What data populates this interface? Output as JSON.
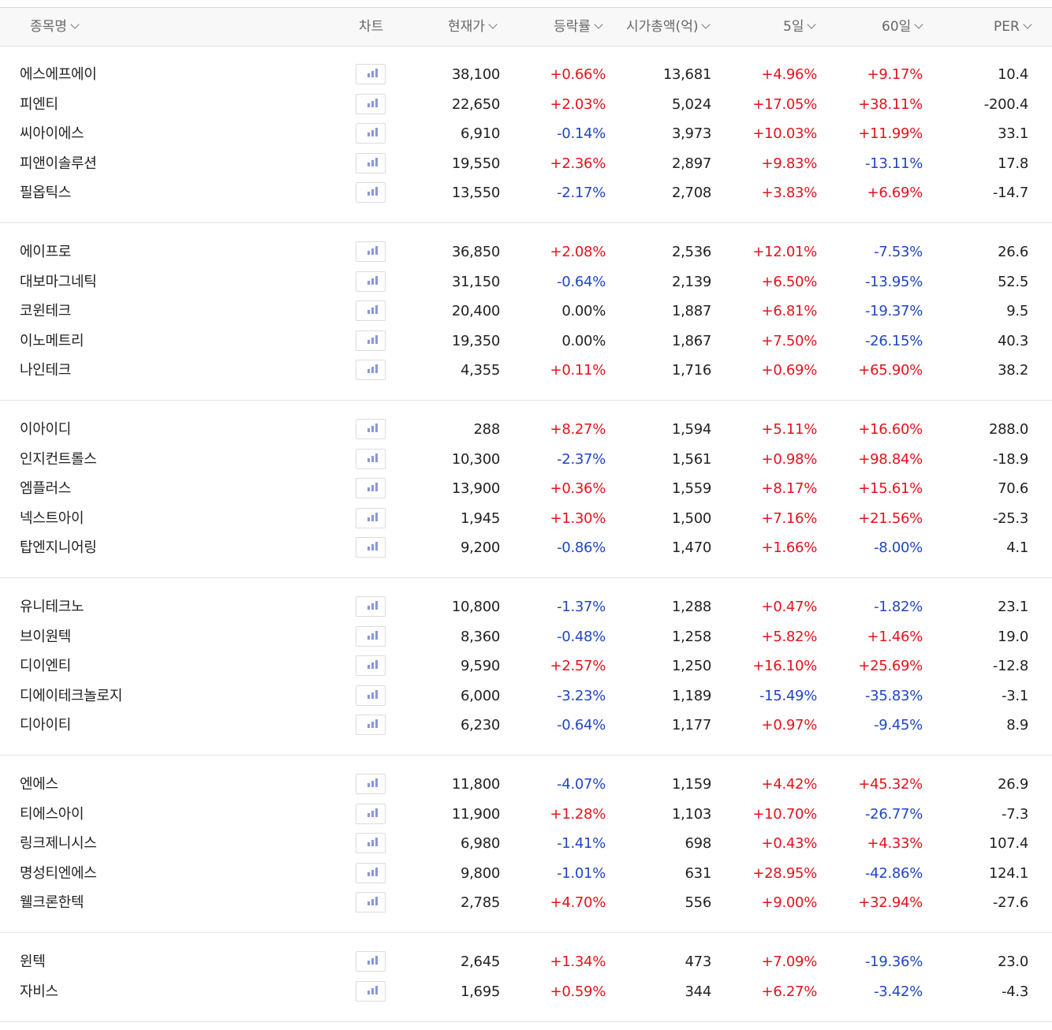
{
  "header": {
    "name": "종목명",
    "chart": "차트",
    "price": "현재가",
    "change": "등락률",
    "mcap": "시가총액(억)",
    "d5": "5일",
    "d60": "60일",
    "per": "PER"
  },
  "groups": [
    [
      {
        "name": "에스에프에이",
        "price": "38,100",
        "change": "+0.66%",
        "mcap": "13,681",
        "d5": "+4.96%",
        "d60": "+9.17%",
        "per": "10.4"
      },
      {
        "name": "피엔티",
        "price": "22,650",
        "change": "+2.03%",
        "mcap": "5,024",
        "d5": "+17.05%",
        "d60": "+38.11%",
        "per": "-200.4"
      },
      {
        "name": "씨아이에스",
        "price": "6,910",
        "change": "-0.14%",
        "mcap": "3,973",
        "d5": "+10.03%",
        "d60": "+11.99%",
        "per": "33.1"
      },
      {
        "name": "피앤이솔루션",
        "price": "19,550",
        "change": "+2.36%",
        "mcap": "2,897",
        "d5": "+9.83%",
        "d60": "-13.11%",
        "per": "17.8"
      },
      {
        "name": "필옵틱스",
        "price": "13,550",
        "change": "-2.17%",
        "mcap": "2,708",
        "d5": "+3.83%",
        "d60": "+6.69%",
        "per": "-14.7"
      }
    ],
    [
      {
        "name": "에이프로",
        "price": "36,850",
        "change": "+2.08%",
        "mcap": "2,536",
        "d5": "+12.01%",
        "d60": "-7.53%",
        "per": "26.6"
      },
      {
        "name": "대보마그네틱",
        "price": "31,150",
        "change": "-0.64%",
        "mcap": "2,139",
        "d5": "+6.50%",
        "d60": "-13.95%",
        "per": "52.5"
      },
      {
        "name": "코윈테크",
        "price": "20,400",
        "change": "0.00%",
        "mcap": "1,887",
        "d5": "+6.81%",
        "d60": "-19.37%",
        "per": "9.5"
      },
      {
        "name": "이노메트리",
        "price": "19,350",
        "change": "0.00%",
        "mcap": "1,867",
        "d5": "+7.50%",
        "d60": "-26.15%",
        "per": "40.3"
      },
      {
        "name": "나인테크",
        "price": "4,355",
        "change": "+0.11%",
        "mcap": "1,716",
        "d5": "+0.69%",
        "d60": "+65.90%",
        "per": "38.2"
      }
    ],
    [
      {
        "name": "이아이디",
        "price": "288",
        "change": "+8.27%",
        "mcap": "1,594",
        "d5": "+5.11%",
        "d60": "+16.60%",
        "per": "288.0"
      },
      {
        "name": "인지컨트롤스",
        "price": "10,300",
        "change": "-2.37%",
        "mcap": "1,561",
        "d5": "+0.98%",
        "d60": "+98.84%",
        "per": "-18.9"
      },
      {
        "name": "엠플러스",
        "price": "13,900",
        "change": "+0.36%",
        "mcap": "1,559",
        "d5": "+8.17%",
        "d60": "+15.61%",
        "per": "70.6"
      },
      {
        "name": "넥스트아이",
        "price": "1,945",
        "change": "+1.30%",
        "mcap": "1,500",
        "d5": "+7.16%",
        "d60": "+21.56%",
        "per": "-25.3"
      },
      {
        "name": "탑엔지니어링",
        "price": "9,200",
        "change": "-0.86%",
        "mcap": "1,470",
        "d5": "+1.66%",
        "d60": "-8.00%",
        "per": "4.1"
      }
    ],
    [
      {
        "name": "유니테크노",
        "price": "10,800",
        "change": "-1.37%",
        "mcap": "1,288",
        "d5": "+0.47%",
        "d60": "-1.82%",
        "per": "23.1"
      },
      {
        "name": "브이원텍",
        "price": "8,360",
        "change": "-0.48%",
        "mcap": "1,258",
        "d5": "+5.82%",
        "d60": "+1.46%",
        "per": "19.0"
      },
      {
        "name": "디이엔티",
        "price": "9,590",
        "change": "+2.57%",
        "mcap": "1,250",
        "d5": "+16.10%",
        "d60": "+25.69%",
        "per": "-12.8"
      },
      {
        "name": "디에이테크놀로지",
        "price": "6,000",
        "change": "-3.23%",
        "mcap": "1,189",
        "d5": "-15.49%",
        "d60": "-35.83%",
        "per": "-3.1"
      },
      {
        "name": "디아이티",
        "price": "6,230",
        "change": "-0.64%",
        "mcap": "1,177",
        "d5": "+0.97%",
        "d60": "-9.45%",
        "per": "8.9"
      }
    ],
    [
      {
        "name": "엔에스",
        "price": "11,800",
        "change": "-4.07%",
        "mcap": "1,159",
        "d5": "+4.42%",
        "d60": "+45.32%",
        "per": "26.9"
      },
      {
        "name": "티에스아이",
        "price": "11,900",
        "change": "+1.28%",
        "mcap": "1,103",
        "d5": "+10.70%",
        "d60": "-26.77%",
        "per": "-7.3"
      },
      {
        "name": "링크제니시스",
        "price": "6,980",
        "change": "-1.41%",
        "mcap": "698",
        "d5": "+0.43%",
        "d60": "+4.33%",
        "per": "107.4"
      },
      {
        "name": "명성티엔에스",
        "price": "9,800",
        "change": "-1.01%",
        "mcap": "631",
        "d5": "+28.95%",
        "d60": "-42.86%",
        "per": "124.1"
      },
      {
        "name": "웰크론한텍",
        "price": "2,785",
        "change": "+4.70%",
        "mcap": "556",
        "d5": "+9.00%",
        "d60": "+32.94%",
        "per": "-27.6"
      }
    ],
    [
      {
        "name": "윈텍",
        "price": "2,645",
        "change": "+1.34%",
        "mcap": "473",
        "d5": "+7.09%",
        "d60": "-19.36%",
        "per": "23.0"
      },
      {
        "name": "자비스",
        "price": "1,695",
        "change": "+0.59%",
        "mcap": "344",
        "d5": "+6.27%",
        "d60": "-3.42%",
        "per": "-4.3"
      }
    ]
  ],
  "colors": {
    "up": "#e5121d",
    "down": "#2146c4",
    "chart_icon": "#8b97d6"
  },
  "icons": {
    "chart": "bar-chart-icon",
    "sort": "chevron-down-icon"
  }
}
